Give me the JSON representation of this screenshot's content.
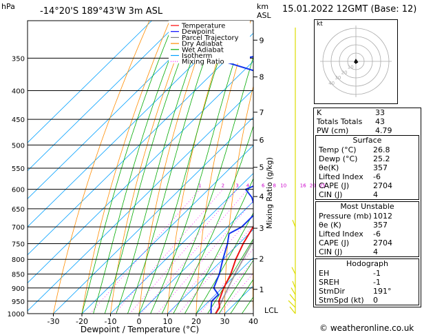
{
  "header": {
    "pressure_unit": "hPa",
    "location": "-14°20'S  189°43'W  3m  ASL",
    "height_unit_line1": "km",
    "height_unit_line2": "ASL",
    "date": "15.01.2022  12GMT  (Base: 12)"
  },
  "axes": {
    "x_label": "Dewpoint / Temperature (°C)",
    "mixing_ratio_label": "Mixing Ratio (g/kg)",
    "lcl_label": "LCL"
  },
  "legend": [
    {
      "label": "Temperature",
      "color": "#ff0000"
    },
    {
      "label": "Dewpoint",
      "color": "#0000ff"
    },
    {
      "label": "Parcel Trajectory",
      "color": "#808080"
    },
    {
      "label": "Dry Adiabat",
      "color": "#ff8c00"
    },
    {
      "label": "Wet Adiabat",
      "color": "#00aa00"
    },
    {
      "label": "Isotherm",
      "color": "#00a0ff"
    },
    {
      "label": "Mixing Ratio",
      "color": "#ff00ff"
    }
  ],
  "chart_data": {
    "type": "skew-t",
    "pressure_levels": [
      350,
      400,
      450,
      500,
      550,
      600,
      650,
      700,
      750,
      800,
      850,
      900,
      950,
      1000
    ],
    "temperature_ticks": [
      -30,
      -20,
      -10,
      0,
      10,
      20,
      30,
      40
    ],
    "height_km_ticks": [
      {
        "label": "1",
        "p": 905
      },
      {
        "label": "2",
        "p": 798
      },
      {
        "label": "3",
        "p": 704
      },
      {
        "label": "4",
        "p": 618
      },
      {
        "label": "5",
        "p": 548
      },
      {
        "label": "6",
        "p": 490
      },
      {
        "label": "7",
        "p": 437
      },
      {
        "label": "8",
        "p": 378
      },
      {
        "label": "9",
        "p": 325
      }
    ],
    "mixing_ratio_labels": [
      "1",
      "2",
      "3",
      "4",
      "6",
      "8",
      "10",
      "16",
      "20",
      "25"
    ],
    "mixing_ratio_values": [
      1,
      2,
      3,
      4,
      6,
      8,
      10,
      16,
      20,
      25
    ],
    "temperature_profile": [
      {
        "p": 1000,
        "t": 26.8
      },
      {
        "p": 975,
        "t": 26
      },
      {
        "p": 950,
        "t": 23.5
      },
      {
        "p": 925,
        "t": 22
      },
      {
        "p": 900,
        "t": 20.5
      },
      {
        "p": 850,
        "t": 18
      },
      {
        "p": 800,
        "t": 14.5
      },
      {
        "p": 750,
        "t": 11.5
      },
      {
        "p": 700,
        "t": 9
      },
      {
        "p": 650,
        "t": 5
      },
      {
        "p": 600,
        "t": 2
      },
      {
        "p": 550,
        "t": -2
      },
      {
        "p": 500,
        "t": -6
      },
      {
        "p": 450,
        "t": -10.5
      },
      {
        "p": 400,
        "t": -16.5
      },
      {
        "p": 350,
        "t": -23.5
      },
      {
        "p": 300,
        "t": -32
      }
    ],
    "dewpoint_profile": [
      {
        "p": 1000,
        "t": 25.2
      },
      {
        "p": 975,
        "t": 23
      },
      {
        "p": 950,
        "t": 21
      },
      {
        "p": 925,
        "t": 21
      },
      {
        "p": 900,
        "t": 17
      },
      {
        "p": 850,
        "t": 14
      },
      {
        "p": 800,
        "t": 10
      },
      {
        "p": 750,
        "t": 6
      },
      {
        "p": 720,
        "t": 3
      },
      {
        "p": 700,
        "t": 5
      },
      {
        "p": 660,
        "t": 5
      },
      {
        "p": 620,
        "t": -2
      },
      {
        "p": 600,
        "t": -7
      },
      {
        "p": 580,
        "t": -3
      },
      {
        "p": 560,
        "t": -8
      },
      {
        "p": 540,
        "t": -12
      },
      {
        "p": 520,
        "t": -10
      },
      {
        "p": 500,
        "t": -8
      },
      {
        "p": 480,
        "t": -14
      },
      {
        "p": 460,
        "t": -16
      },
      {
        "p": 440,
        "t": -15
      },
      {
        "p": 420,
        "t": -20
      },
      {
        "p": 400,
        "t": -35
      },
      {
        "p": 385,
        "t": -20
      },
      {
        "p": 375,
        "t": -40
      },
      {
        "p": 355,
        "t": -60
      },
      {
        "p": 330,
        "t": -30
      },
      {
        "p": 320,
        "t": -50
      },
      {
        "p": 300,
        "t": -37
      }
    ],
    "parcel_profile": [
      {
        "p": 1000,
        "t": 26.8
      },
      {
        "p": 950,
        "t": 24.5
      },
      {
        "p": 900,
        "t": 22
      },
      {
        "p": 850,
        "t": 19.5
      },
      {
        "p": 800,
        "t": 17
      },
      {
        "p": 750,
        "t": 14.5
      },
      {
        "p": 700,
        "t": 11.5
      },
      {
        "p": 650,
        "t": 8.5
      },
      {
        "p": 600,
        "t": 5
      },
      {
        "p": 550,
        "t": 1.5
      },
      {
        "p": 500,
        "t": -2.5
      },
      {
        "p": 450,
        "t": -7
      },
      {
        "p": 400,
        "t": -12
      },
      {
        "p": 350,
        "t": -18
      },
      {
        "p": 300,
        "t": -25
      }
    ]
  },
  "indices": {
    "rows": [
      {
        "label": "K",
        "value": "33"
      },
      {
        "label": "Totals Totals",
        "value": "43"
      },
      {
        "label": "PW (cm)",
        "value": "4.79"
      }
    ]
  },
  "surface": {
    "title": "Surface",
    "rows": [
      {
        "label": "Temp (°C)",
        "value": "26.8"
      },
      {
        "label": "Dewp (°C)",
        "value": "25.2"
      },
      {
        "label": "θe(K)",
        "value": "357"
      },
      {
        "label": "Lifted Index",
        "value": "-6"
      },
      {
        "label": "CAPE (J)",
        "value": "2704"
      },
      {
        "label": "CIN (J)",
        "value": "4"
      }
    ]
  },
  "most_unstable": {
    "title": "Most Unstable",
    "rows": [
      {
        "label": "Pressure (mb)",
        "value": "1012"
      },
      {
        "label": "θe (K)",
        "value": "357"
      },
      {
        "label": "Lifted Index",
        "value": "-6"
      },
      {
        "label": "CAPE (J)",
        "value": "2704"
      },
      {
        "label": "CIN (J)",
        "value": "4"
      }
    ]
  },
  "hodograph": {
    "title": "Hodograph",
    "unit": "kt",
    "ring_labels": [
      "10",
      "20",
      "30",
      "40"
    ],
    "rows": [
      {
        "label": "EH",
        "value": "-1"
      },
      {
        "label": "SREH",
        "value": "-1"
      },
      {
        "label": "StmDir",
        "value": "191°"
      },
      {
        "label": "StmSpd (kt)",
        "value": "0"
      }
    ]
  },
  "footer": {
    "credit": "© weatheronline.co.uk"
  }
}
